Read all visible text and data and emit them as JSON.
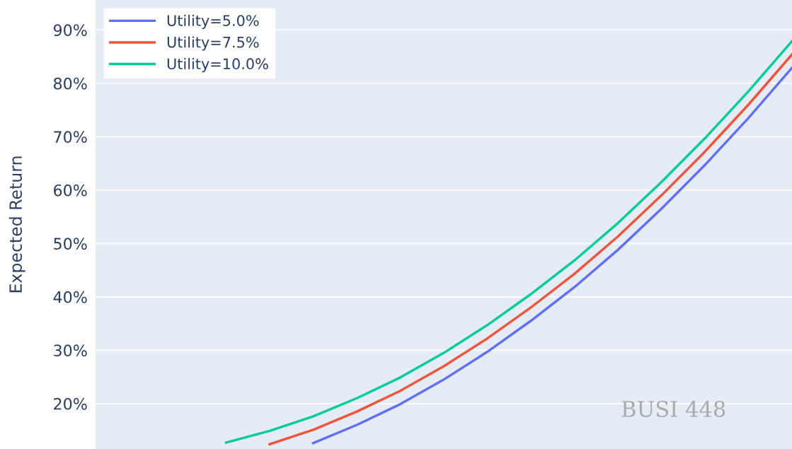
{
  "chart_data": {
    "type": "line",
    "ylabel": "Expected Return",
    "categories": [
      null,
      null,
      null,
      null,
      null,
      null,
      null,
      null,
      null,
      null,
      null,
      null,
      null,
      null,
      null,
      null,
      null
    ],
    "series": [
      {
        "name": "Utility=5.0%",
        "color": "#636efa",
        "values": [
          null,
          null,
          null,
          null,
          null,
          12.6,
          16.0,
          19.9,
          24.5,
          29.7,
          35.5,
          41.8,
          48.8,
          56.5,
          64.7,
          73.5,
          82.9
        ]
      },
      {
        "name": "Utility=7.5%",
        "color": "#ef553b",
        "values": [
          null,
          null,
          null,
          null,
          12.4,
          15.1,
          18.5,
          22.4,
          27.0,
          32.2,
          38.0,
          44.3,
          51.3,
          59.0,
          67.2,
          76.0,
          85.4
        ]
      },
      {
        "name": "Utility=10.0%",
        "color": "#00cc96",
        "values": [
          null,
          null,
          null,
          12.7,
          14.9,
          17.6,
          21.0,
          24.9,
          29.5,
          34.7,
          40.5,
          46.8,
          53.8,
          61.5,
          69.7,
          78.5,
          87.9
        ]
      }
    ],
    "ylim": [
      11.5,
      95.6
    ],
    "yticks": [
      {
        "value": 20,
        "label": "20%"
      },
      {
        "value": 30,
        "label": "30%"
      },
      {
        "value": 40,
        "label": "40%"
      },
      {
        "value": 50,
        "label": "50%"
      },
      {
        "value": 60,
        "label": "60%"
      },
      {
        "value": 70,
        "label": "70%"
      },
      {
        "value": 80,
        "label": "80%"
      },
      {
        "value": 90,
        "label": "90%"
      }
    ],
    "tick_labels": "y",
    "grid": "y",
    "legend": "top left",
    "marker": "none",
    "line_style": "solid",
    "annotations": [
      "BUSI 448"
    ]
  }
}
